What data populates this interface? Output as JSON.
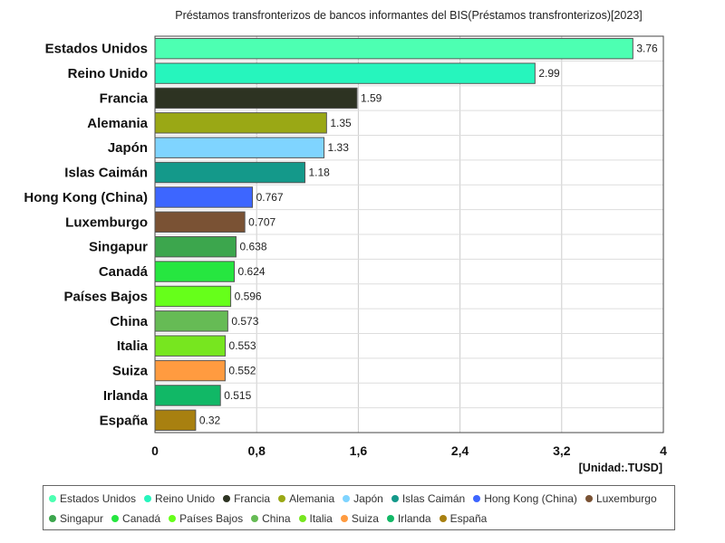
{
  "chart_data": {
    "type": "bar",
    "orientation": "horizontal",
    "title": "Préstamos transfronterizos de bancos informantes del BIS(Préstamos transfronterizos)[2023]",
    "unit_label": "[Unidad:.TUSD]",
    "categories": [
      "Estados Unidos",
      "Reino Unido",
      "Francia",
      "Alemania",
      "Japón",
      "Islas Caimán",
      "Hong Kong (China)",
      "Luxemburgo",
      "Singapur",
      "Canadá",
      "Países Bajos",
      "China",
      "Italia",
      "Suiza",
      "Irlanda",
      "España"
    ],
    "values": [
      3.76,
      2.99,
      1.59,
      1.35,
      1.33,
      1.18,
      0.767,
      0.707,
      0.638,
      0.624,
      0.596,
      0.573,
      0.553,
      0.552,
      0.515,
      0.32
    ],
    "value_labels": [
      "3.76",
      "2.99",
      "1.59",
      "1.35",
      "1.33",
      "1.18",
      "0.767",
      "0.707",
      "0.638",
      "0.624",
      "0.596",
      "0.573",
      "0.553",
      "0.552",
      "0.515",
      "0.32"
    ],
    "colors": [
      "#4dffb2",
      "#26f5bd",
      "#2d3322",
      "#9aa815",
      "#7fd4ff",
      "#14998a",
      "#3d66ff",
      "#7a5234",
      "#3ca64d",
      "#26e640",
      "#66ff1a",
      "#66bb55",
      "#77e61f",
      "#ff9b40",
      "#11b866",
      "#a88010"
    ],
    "xlim": [
      0,
      4
    ],
    "x_ticks": [
      0,
      0.8,
      1.6,
      2.4,
      3.2,
      4
    ],
    "x_tick_labels": [
      "0",
      "0,8",
      "1,6",
      "2,4",
      "3,2",
      "4"
    ],
    "grid": true,
    "legend_position": "bottom"
  }
}
